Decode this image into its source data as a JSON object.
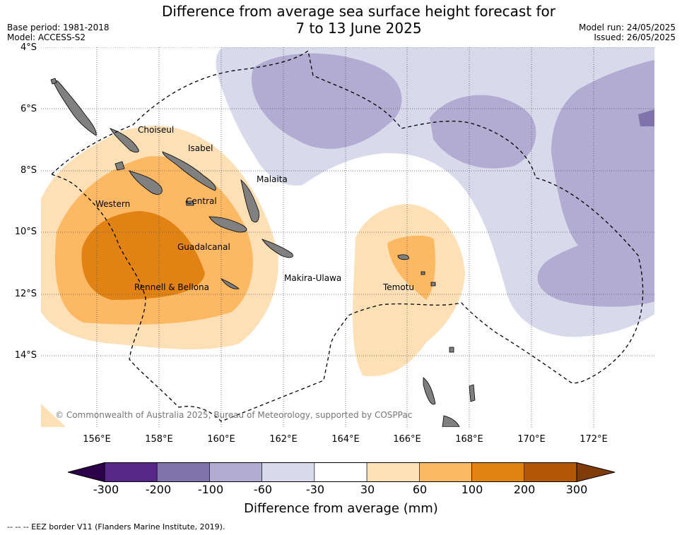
{
  "title_line1": "Difference from average sea surface height forecast for",
  "title_line2": "7 to 13 June 2025",
  "base_period": "Base period: 1981-2018",
  "model": "Model: ACCESS-S2",
  "model_run": "Model run: 24/05/2025",
  "issued": "Issued: 26/05/2025",
  "copyright": "© Commonwealth of Australia 2025, Bureau of Meteorology, supported by COSPPac",
  "lat_labels": [
    "4°S",
    "6°S",
    "8°S",
    "10°S",
    "12°S",
    "14°S"
  ],
  "lon_labels": [
    "156°E",
    "158°E",
    "160°E",
    "162°E",
    "164°E",
    "166°E",
    "168°E",
    "170°E",
    "172°E"
  ],
  "provinces": [
    "Choiseul",
    "Isabel",
    "Malaita",
    "Western",
    "Central",
    "Guadalcanal",
    "Makira-Ulawa",
    "Rennell & Bellona",
    "Temotu"
  ],
  "colorbar": {
    "ticks": [
      "-300",
      "-200",
      "-100",
      "-60",
      "-30",
      "30",
      "60",
      "100",
      "200",
      "300"
    ],
    "colors": [
      "#542788",
      "#8073ac",
      "#b2abd2",
      "#d8daeb",
      "#ffffff",
      "#fee0b6",
      "#fdb863",
      "#e08214",
      "#b35806"
    ],
    "under_color": "#2d004b",
    "over_color": "#7f3b08",
    "label": "Difference from average (mm)"
  },
  "footnote": "--  --  -- EEZ border V11 (Flanders Marine Institute, 2019)."
}
